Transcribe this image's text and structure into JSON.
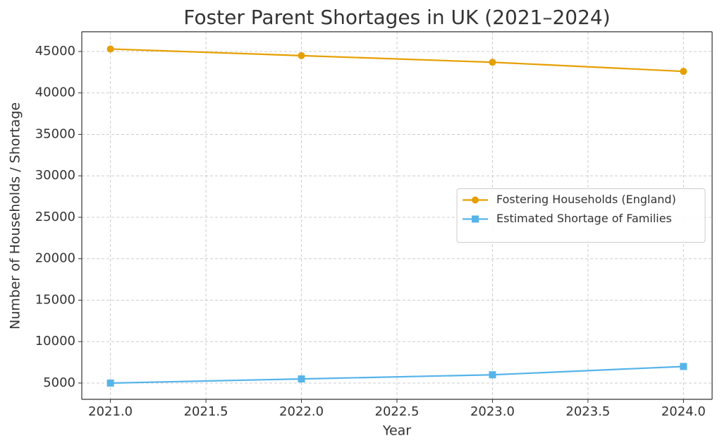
{
  "chart_data": {
    "type": "line",
    "title": "Foster Parent Shortages in UK (2021–2024)",
    "x_label": "Year",
    "y_label": "Number of Households / Shortage",
    "x": [
      2021,
      2022,
      2023,
      2024
    ],
    "series": [
      {
        "name": "Fostering Households (England)",
        "color": "#e69f00",
        "marker": "circle",
        "values": [
          45300,
          44500,
          43700,
          42600
        ]
      },
      {
        "name": "Estimated Shortage of Families",
        "color": "#56b4e9",
        "marker": "square",
        "values": [
          5000,
          5500,
          6000,
          7000
        ]
      }
    ],
    "xlim": [
      2020.85,
      2024.15
    ],
    "ylim": [
      3040,
      47380
    ],
    "xticks": [
      {
        "value": 2021,
        "label": "2021.0"
      },
      {
        "value": 2021.5,
        "label": "2021.5"
      },
      {
        "value": 2022,
        "label": "2022.0"
      },
      {
        "value": 2022.5,
        "label": "2022.5"
      },
      {
        "value": 2023,
        "label": "2023.0"
      },
      {
        "value": 2023.5,
        "label": "2023.5"
      },
      {
        "value": 2024,
        "label": "2024.0"
      }
    ],
    "yticks": [
      5000,
      10000,
      15000,
      20000,
      25000,
      30000,
      35000,
      40000,
      45000
    ],
    "grid": true,
    "legend": "center right"
  }
}
